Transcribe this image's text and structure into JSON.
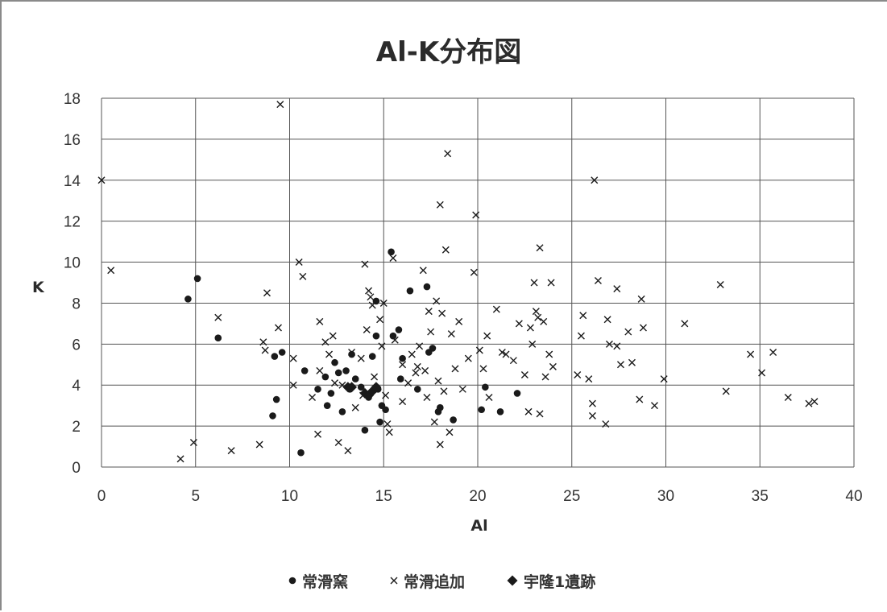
{
  "chart_data": {
    "type": "scatter",
    "title": "Al-K分布図",
    "xlabel": "Al",
    "ylabel": "K",
    "xlim": [
      0,
      40
    ],
    "ylim": [
      0,
      18
    ],
    "xticks": [
      "0",
      "5",
      "10",
      "15",
      "20",
      "25",
      "30",
      "35",
      "40"
    ],
    "yticks": [
      "0",
      "2",
      "4",
      "6",
      "8",
      "10",
      "12",
      "14",
      "16",
      "18"
    ],
    "grid": true,
    "legend_position": "bottom",
    "series": [
      {
        "name": "常滑窯",
        "marker": "circle",
        "color": "#1a1a1a",
        "points": [
          [
            4.6,
            8.2
          ],
          [
            5.1,
            9.2
          ],
          [
            6.2,
            6.3
          ],
          [
            9.2,
            5.4
          ],
          [
            9.6,
            5.6
          ],
          [
            9.3,
            3.3
          ],
          [
            9.1,
            2.5
          ],
          [
            10.6,
            0.7
          ],
          [
            10.8,
            4.7
          ],
          [
            11.5,
            3.8
          ],
          [
            11.9,
            4.4
          ],
          [
            12.0,
            3.0
          ],
          [
            12.2,
            3.6
          ],
          [
            12.4,
            5.1
          ],
          [
            12.6,
            4.6
          ],
          [
            12.8,
            2.7
          ],
          [
            13.0,
            4.7
          ],
          [
            13.2,
            3.8
          ],
          [
            13.3,
            5.5
          ],
          [
            13.5,
            4.3
          ],
          [
            13.8,
            3.9
          ],
          [
            14.0,
            1.8
          ],
          [
            14.2,
            3.4
          ],
          [
            14.4,
            5.4
          ],
          [
            14.6,
            6.4
          ],
          [
            14.6,
            8.1
          ],
          [
            14.7,
            3.8
          ],
          [
            14.8,
            2.2
          ],
          [
            14.9,
            3.0
          ],
          [
            15.1,
            2.8
          ],
          [
            15.4,
            10.5
          ],
          [
            15.5,
            6.4
          ],
          [
            15.8,
            6.7
          ],
          [
            15.9,
            4.3
          ],
          [
            16.0,
            5.3
          ],
          [
            16.4,
            8.6
          ],
          [
            16.8,
            3.8
          ],
          [
            17.3,
            8.8
          ],
          [
            17.4,
            5.6
          ],
          [
            17.6,
            5.8
          ],
          [
            17.9,
            2.7
          ],
          [
            18.0,
            2.9
          ],
          [
            18.7,
            2.3
          ],
          [
            20.2,
            2.8
          ],
          [
            20.4,
            3.9
          ],
          [
            21.2,
            2.7
          ],
          [
            22.1,
            3.6
          ]
        ]
      },
      {
        "name": "常滑追加",
        "marker": "x",
        "color": "#1a1a1a",
        "points": [
          [
            0.0,
            14.0
          ],
          [
            0.5,
            9.6
          ],
          [
            4.2,
            0.4
          ],
          [
            4.9,
            1.2
          ],
          [
            6.2,
            7.3
          ],
          [
            6.9,
            0.8
          ],
          [
            8.4,
            1.1
          ],
          [
            8.6,
            6.1
          ],
          [
            8.7,
            5.7
          ],
          [
            8.8,
            8.5
          ],
          [
            9.5,
            17.7
          ],
          [
            9.4,
            6.8
          ],
          [
            10.2,
            5.3
          ],
          [
            10.2,
            4.0
          ],
          [
            10.5,
            10.0
          ],
          [
            10.7,
            9.3
          ],
          [
            11.2,
            3.4
          ],
          [
            11.5,
            1.6
          ],
          [
            11.6,
            4.7
          ],
          [
            11.6,
            7.1
          ],
          [
            11.9,
            6.1
          ],
          [
            12.1,
            5.5
          ],
          [
            12.3,
            6.4
          ],
          [
            12.4,
            4.1
          ],
          [
            12.6,
            1.2
          ],
          [
            12.8,
            4.0
          ],
          [
            13.1,
            0.8
          ],
          [
            13.3,
            5.6
          ],
          [
            13.5,
            2.9
          ],
          [
            13.8,
            5.3
          ],
          [
            13.9,
            3.5
          ],
          [
            14.0,
            9.9
          ],
          [
            14.1,
            6.7
          ],
          [
            14.2,
            8.6
          ],
          [
            14.3,
            8.3
          ],
          [
            14.4,
            7.9
          ],
          [
            14.5,
            4.4
          ],
          [
            14.8,
            7.2
          ],
          [
            14.9,
            5.9
          ],
          [
            15.0,
            8.0
          ],
          [
            15.1,
            3.5
          ],
          [
            15.2,
            2.1
          ],
          [
            15.3,
            1.7
          ],
          [
            15.5,
            10.2
          ],
          [
            15.6,
            6.2
          ],
          [
            16.0,
            3.2
          ],
          [
            16.0,
            5.0
          ],
          [
            16.3,
            4.1
          ],
          [
            16.5,
            5.5
          ],
          [
            16.7,
            4.6
          ],
          [
            16.8,
            4.9
          ],
          [
            16.9,
            5.9
          ],
          [
            17.1,
            9.6
          ],
          [
            17.2,
            4.7
          ],
          [
            17.3,
            3.4
          ],
          [
            17.4,
            7.6
          ],
          [
            17.5,
            6.6
          ],
          [
            17.7,
            2.2
          ],
          [
            17.8,
            8.1
          ],
          [
            17.9,
            4.2
          ],
          [
            18.0,
            1.1
          ],
          [
            18.0,
            12.8
          ],
          [
            18.1,
            7.5
          ],
          [
            18.2,
            3.7
          ],
          [
            18.3,
            10.6
          ],
          [
            18.4,
            15.3
          ],
          [
            18.5,
            1.7
          ],
          [
            18.6,
            6.5
          ],
          [
            18.8,
            4.8
          ],
          [
            19.0,
            7.1
          ],
          [
            19.2,
            3.8
          ],
          [
            19.5,
            5.3
          ],
          [
            19.8,
            9.5
          ],
          [
            19.9,
            12.3
          ],
          [
            20.1,
            5.7
          ],
          [
            20.3,
            4.8
          ],
          [
            20.5,
            6.4
          ],
          [
            20.6,
            3.4
          ],
          [
            21.0,
            7.7
          ],
          [
            21.3,
            5.6
          ],
          [
            21.5,
            5.5
          ],
          [
            21.9,
            5.2
          ],
          [
            22.2,
            7.0
          ],
          [
            22.5,
            4.5
          ],
          [
            22.7,
            2.7
          ],
          [
            22.8,
            6.8
          ],
          [
            22.9,
            6.0
          ],
          [
            23.0,
            9.0
          ],
          [
            23.1,
            7.6
          ],
          [
            23.2,
            7.3
          ],
          [
            23.3,
            10.7
          ],
          [
            23.3,
            2.6
          ],
          [
            23.5,
            7.1
          ],
          [
            23.6,
            4.4
          ],
          [
            23.8,
            5.5
          ],
          [
            23.9,
            9.0
          ],
          [
            24.0,
            4.9
          ],
          [
            25.3,
            4.5
          ],
          [
            25.5,
            6.4
          ],
          [
            25.6,
            7.4
          ],
          [
            25.9,
            4.3
          ],
          [
            26.1,
            3.1
          ],
          [
            26.1,
            2.5
          ],
          [
            26.2,
            14.0
          ],
          [
            26.4,
            9.1
          ],
          [
            26.8,
            2.1
          ],
          [
            26.9,
            7.2
          ],
          [
            27.0,
            6.0
          ],
          [
            27.4,
            5.9
          ],
          [
            27.4,
            8.7
          ],
          [
            27.6,
            5.0
          ],
          [
            28.0,
            6.6
          ],
          [
            28.2,
            5.1
          ],
          [
            28.6,
            3.3
          ],
          [
            28.7,
            8.2
          ],
          [
            28.8,
            6.8
          ],
          [
            29.4,
            3.0
          ],
          [
            29.9,
            4.3
          ],
          [
            31.0,
            7.0
          ],
          [
            32.9,
            8.9
          ],
          [
            33.2,
            3.7
          ],
          [
            34.5,
            5.5
          ],
          [
            35.1,
            4.6
          ],
          [
            35.7,
            5.6
          ],
          [
            36.5,
            3.4
          ],
          [
            37.6,
            3.1
          ],
          [
            37.9,
            3.2
          ]
        ]
      },
      {
        "name": "宇隆1遺跡",
        "marker": "diamond",
        "color": "#1a1a1a",
        "points": [
          [
            13.1,
            3.9
          ],
          [
            13.3,
            3.9
          ],
          [
            14.0,
            3.6
          ],
          [
            14.2,
            3.5
          ],
          [
            14.4,
            3.7
          ],
          [
            14.6,
            3.9
          ]
        ]
      }
    ]
  }
}
